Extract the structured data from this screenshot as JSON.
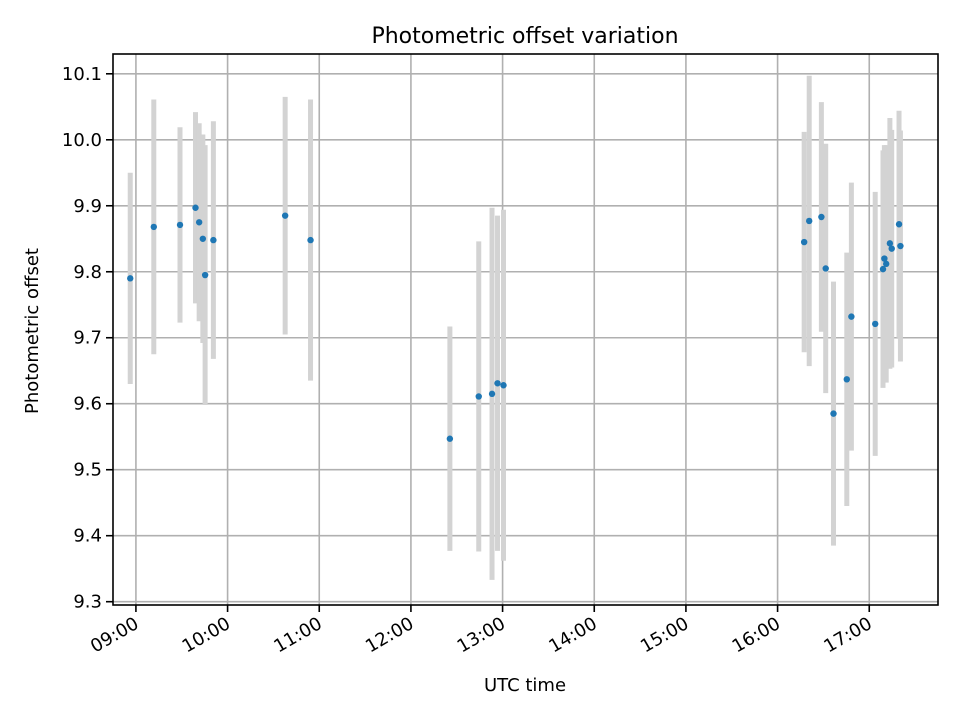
{
  "chart_data": {
    "type": "scatter",
    "title": "Photometric offset variation",
    "xlabel": "UTC time",
    "ylabel": "Photometric offset",
    "x_unit": "hours",
    "xlim": [
      8.75,
      17.75
    ],
    "ylim": [
      9.295,
      10.13
    ],
    "grid": true,
    "colors": {
      "point": "#1f77b4",
      "errorbar": "#d3d3d3"
    },
    "x_ticks": [
      {
        "value": 9,
        "label": "09:00"
      },
      {
        "value": 10,
        "label": "10:00"
      },
      {
        "value": 11,
        "label": "11:00"
      },
      {
        "value": 12,
        "label": "12:00"
      },
      {
        "value": 13,
        "label": "13:00"
      },
      {
        "value": 14,
        "label": "14:00"
      },
      {
        "value": 15,
        "label": "15:00"
      },
      {
        "value": 16,
        "label": "16:00"
      },
      {
        "value": 17,
        "label": "17:00"
      }
    ],
    "y_ticks": [
      {
        "value": 9.3,
        "label": "9.3"
      },
      {
        "value": 9.4,
        "label": "9.4"
      },
      {
        "value": 9.5,
        "label": "9.5"
      },
      {
        "value": 9.6,
        "label": "9.6"
      },
      {
        "value": 9.7,
        "label": "9.7"
      },
      {
        "value": 9.8,
        "label": "9.8"
      },
      {
        "value": 9.9,
        "label": "9.9"
      },
      {
        "value": 10.0,
        "label": "10.0"
      },
      {
        "value": 10.1,
        "label": "10.1"
      }
    ],
    "points": [
      {
        "x": 8.938,
        "y": 9.79,
        "err": 0.16
      },
      {
        "x": 9.195,
        "y": 9.868,
        "err": 0.193
      },
      {
        "x": 9.481,
        "y": 9.871,
        "err": 0.148
      },
      {
        "x": 9.65,
        "y": 9.897,
        "err": 0.145
      },
      {
        "x": 9.69,
        "y": 9.875,
        "err": 0.15
      },
      {
        "x": 9.73,
        "y": 9.85,
        "err": 0.158
      },
      {
        "x": 9.755,
        "y": 9.795,
        "err": 0.197
      },
      {
        "x": 9.845,
        "y": 9.848,
        "err": 0.18
      },
      {
        "x": 10.628,
        "y": 9.885,
        "err": 0.18
      },
      {
        "x": 10.905,
        "y": 9.848,
        "err": 0.213
      },
      {
        "x": 12.425,
        "y": 9.547,
        "err": 0.17
      },
      {
        "x": 12.74,
        "y": 9.611,
        "err": 0.235
      },
      {
        "x": 12.885,
        "y": 9.615,
        "err": 0.282
      },
      {
        "x": 12.945,
        "y": 9.631,
        "err": 0.254
      },
      {
        "x": 13.01,
        "y": 9.628,
        "err": 0.266
      },
      {
        "x": 16.29,
        "y": 9.845,
        "err": 0.167
      },
      {
        "x": 16.345,
        "y": 9.877,
        "err": 0.22
      },
      {
        "x": 16.478,
        "y": 9.883,
        "err": 0.174
      },
      {
        "x": 16.525,
        "y": 9.805,
        "err": 0.189
      },
      {
        "x": 16.61,
        "y": 9.585,
        "err": 0.2
      },
      {
        "x": 16.755,
        "y": 9.637,
        "err": 0.192
      },
      {
        "x": 16.805,
        "y": 9.732,
        "err": 0.203
      },
      {
        "x": 17.065,
        "y": 9.721,
        "err": 0.2
      },
      {
        "x": 17.15,
        "y": 9.804,
        "err": 0.18
      },
      {
        "x": 17.165,
        "y": 9.82,
        "err": 0.172
      },
      {
        "x": 17.185,
        "y": 9.812,
        "err": 0.18
      },
      {
        "x": 17.225,
        "y": 9.843,
        "err": 0.19
      },
      {
        "x": 17.245,
        "y": 9.835,
        "err": 0.18
      },
      {
        "x": 17.325,
        "y": 9.872,
        "err": 0.172
      },
      {
        "x": 17.34,
        "y": 9.839,
        "err": 0.175
      }
    ]
  }
}
